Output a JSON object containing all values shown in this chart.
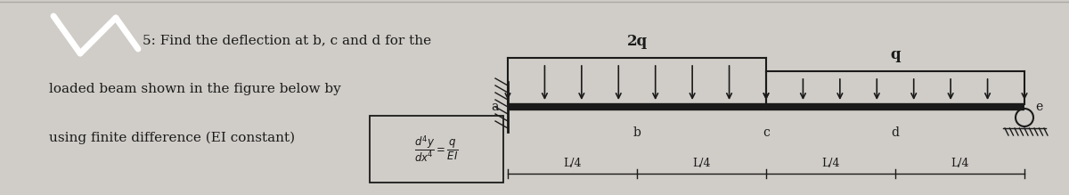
{
  "bg_color": "#d0cdc8",
  "text_color": "#1a1a1a",
  "title_line1": "5: Find the deflection at b, c and d for the",
  "title_line2": "loaded beam shown in the figure below by",
  "title_line3": "using finite difference (EI constant)",
  "beam_label_a": "a",
  "beam_label_b": "b",
  "beam_label_c": "c",
  "beam_label_d": "d",
  "beam_label_e": "e",
  "load_label_2q": "2q",
  "load_label_q": "q",
  "span_label": "L/4",
  "beam_color": "#1a1a1a",
  "fig_width": 12.0,
  "fig_height": 2.19,
  "dpi": 100
}
